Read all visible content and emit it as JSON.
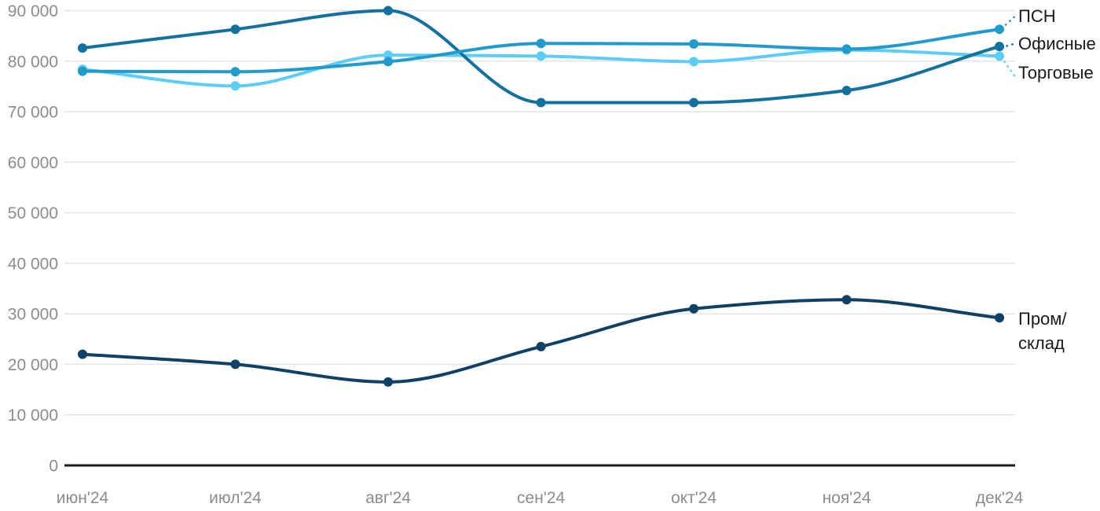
{
  "chart_data": {
    "type": "line",
    "title": "",
    "xlabel": "",
    "ylabel": "",
    "ylim": [
      0,
      90000
    ],
    "grid": "horizontal",
    "legend_position": "right-of-line-end",
    "x_categories": [
      "июн'24",
      "июл'24",
      "авг'24",
      "сен'24",
      "окт'24",
      "ноя'24",
      "дек'24"
    ],
    "y_ticks": [
      {
        "value": 0,
        "label": "0"
      },
      {
        "value": 10000,
        "label": "10 000"
      },
      {
        "value": 20000,
        "label": "20 000"
      },
      {
        "value": 30000,
        "label": "30 000"
      },
      {
        "value": 40000,
        "label": "40 000"
      },
      {
        "value": 50000,
        "label": "50 000"
      },
      {
        "value": 60000,
        "label": "60 000"
      },
      {
        "value": 70000,
        "label": "70 000"
      },
      {
        "value": 80000,
        "label": "80 000"
      },
      {
        "value": 90000,
        "label": "90 000"
      }
    ],
    "series": [
      {
        "id": "torgovye",
        "name": "Торговые",
        "color": "#5BCDF7",
        "label_lines": [
          "Торговые"
        ],
        "values": [
          78400,
          75100,
          81200,
          81000,
          79900,
          82200,
          81000
        ]
      },
      {
        "id": "ofisnye",
        "name": "Офисные",
        "color": "#14719E",
        "label_lines": [
          "Офисные"
        ],
        "values": [
          82600,
          86300,
          90000,
          71800,
          71800,
          74200,
          82900
        ]
      },
      {
        "id": "psn",
        "name": "ПСН",
        "color": "#219BCC",
        "label_lines": [
          "ПСН"
        ],
        "values": [
          78000,
          77900,
          79900,
          83500,
          83400,
          82400,
          86300
        ]
      },
      {
        "id": "prom_sklad",
        "name": "Пром/склад",
        "color": "#0F4065",
        "label_lines": [
          "Пром/",
          "склад"
        ],
        "values": [
          22000,
          20000,
          16500,
          23500,
          31000,
          32800,
          29200
        ]
      }
    ],
    "colors": {
      "grid": "#E4E4E4",
      "axis": "#1A1A1A",
      "tick_label": "#8C8C8C",
      "legend_label": "#1A1A1A",
      "background": "#FFFFFF"
    }
  }
}
